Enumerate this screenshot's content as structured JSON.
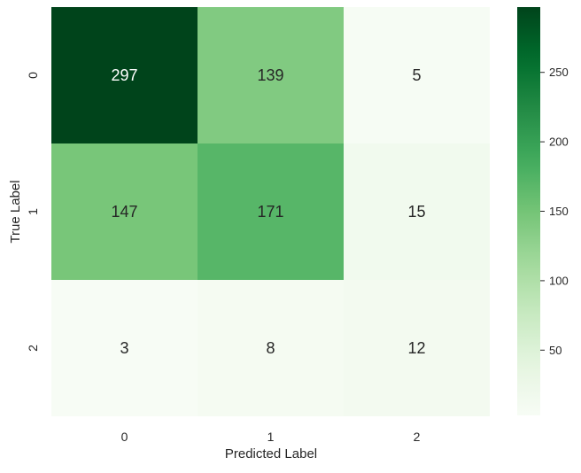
{
  "chart_data": {
    "type": "heatmap",
    "title": "",
    "xlabel": "Predicted Label",
    "ylabel": "True Label",
    "x_categories": [
      "0",
      "1",
      "2"
    ],
    "y_categories": [
      "0",
      "1",
      "2"
    ],
    "values": [
      [
        297,
        139,
        5
      ],
      [
        147,
        171,
        15
      ],
      [
        3,
        8,
        12
      ]
    ],
    "colormap": "Greens",
    "colorbar": {
      "range": [
        3,
        297
      ],
      "ticks": [
        50,
        100,
        150,
        200,
        250
      ],
      "tick_labels": [
        "50",
        "100",
        "150",
        "200",
        "250"
      ]
    },
    "annotations": true,
    "grid": false
  }
}
